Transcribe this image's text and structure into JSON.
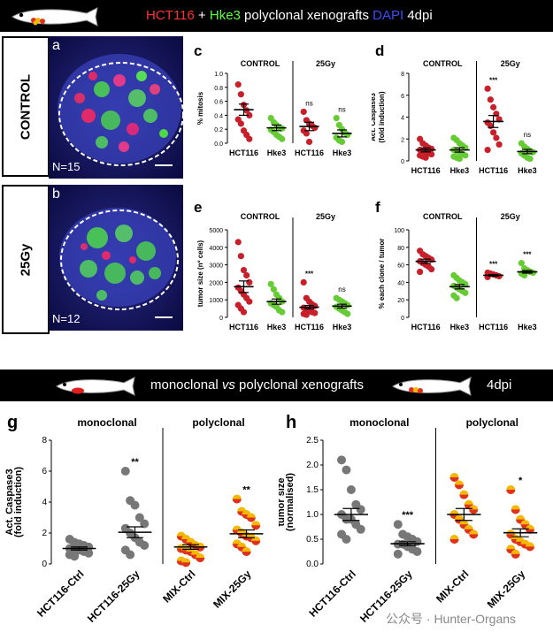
{
  "header": {
    "part1": "HCT116",
    "part2": " + ",
    "part3": "Hke3",
    "part4": " polyclonal xenografts ",
    "part5": "DAPI",
    "part6": " 4dpi"
  },
  "side_labels": {
    "control": "CONTROL",
    "gy": "25Gy"
  },
  "micro": {
    "a": {
      "letter": "a",
      "n": "N=15"
    },
    "b": {
      "letter": "b",
      "n": "N=12"
    }
  },
  "header2": {
    "mono": "monoclonal ",
    "vs": "vs",
    "poly": " polyclonal xenografts",
    "dpi": "4dpi"
  },
  "watermark": "公众号 · Hunter-Organs",
  "colors": {
    "hct": "#c8202a",
    "hke": "#66cc33",
    "mono": "#777777",
    "mix_a": "#f5b800",
    "mix_b": "#e03020"
  },
  "chart_data": [
    {
      "panel": "c",
      "type": "scatter",
      "groups": [
        "CONTROL",
        "25Gy"
      ],
      "categories": [
        "HCT116",
        "Hke3",
        "HCT116",
        "Hke3"
      ],
      "ylabel": "% mitosis",
      "ylim": [
        0,
        1.0
      ],
      "yticks": [
        "0.0",
        "0.2",
        "0.4",
        "0.6",
        "0.8",
        "1.0"
      ],
      "annotations": [
        "",
        "",
        "ns",
        "ns"
      ],
      "means": [
        0.48,
        0.22,
        0.24,
        0.14
      ],
      "sem": [
        0.08,
        0.04,
        0.06,
        0.05
      ],
      "points": [
        [
          0.84,
          0.7,
          0.55,
          0.47,
          0.4,
          0.34,
          0.28,
          0.18,
          0.12,
          0.06
        ],
        [
          0.36,
          0.3,
          0.26,
          0.23,
          0.21,
          0.19,
          0.16,
          0.12,
          0.09,
          0.06
        ],
        [
          0.45,
          0.33,
          0.28,
          0.25,
          0.22,
          0.18,
          0.14,
          0.02
        ],
        [
          0.36,
          0.26,
          0.2,
          0.15,
          0.12,
          0.08,
          0.04,
          0.02
        ]
      ]
    },
    {
      "panel": "d",
      "type": "scatter",
      "groups": [
        "CONTROL",
        "25Gy"
      ],
      "categories": [
        "HCT116",
        "Hke3",
        "HCT116",
        "Hke3"
      ],
      "ylabel": "Act. Caspase3",
      "ylabel2": "(fold induction)",
      "ylim": [
        0,
        8
      ],
      "yticks": [
        "0",
        "2",
        "4",
        "6",
        "8"
      ],
      "annotations": [
        "",
        "",
        "***",
        "ns"
      ],
      "means": [
        1.0,
        1.0,
        3.6,
        0.85
      ],
      "sem": [
        0.18,
        0.2,
        0.55,
        0.2
      ],
      "points": [
        [
          2.0,
          1.6,
          1.4,
          1.2,
          1.1,
          1.0,
          0.9,
          0.8,
          0.7,
          0.6,
          0.5,
          0.4,
          0.3
        ],
        [
          2.1,
          1.9,
          1.6,
          1.4,
          1.2,
          1.0,
          0.9,
          0.8,
          0.6,
          0.5,
          0.4,
          0.3,
          0.2
        ],
        [
          6.6,
          5.6,
          4.9,
          4.3,
          3.8,
          3.5,
          3.2,
          2.6,
          2.1,
          1.5,
          1.0
        ],
        [
          1.6,
          1.3,
          1.1,
          0.9,
          0.8,
          0.7,
          0.5,
          0.3,
          0.2
        ]
      ]
    },
    {
      "panel": "e",
      "type": "scatter",
      "groups": [
        "CONTROL",
        "25Gy"
      ],
      "categories": [
        "HCT116",
        "Hke3",
        "HCT116",
        "Hke3"
      ],
      "ylabel": "tumor size (nº cells)",
      "ylim": [
        0,
        5000
      ],
      "yticks": [
        "0",
        "1000",
        "2000",
        "3000",
        "4000",
        "5000"
      ],
      "annotations": [
        "",
        "",
        "***",
        "ns"
      ],
      "means": [
        1750,
        900,
        580,
        640
      ],
      "sem": [
        330,
        150,
        100,
        110
      ],
      "points": [
        [
          4300,
          3500,
          2700,
          2400,
          2000,
          1700,
          1500,
          1300,
          1100,
          900,
          700,
          500,
          300
        ],
        [
          1900,
          1600,
          1300,
          1100,
          900,
          800,
          700,
          600,
          400,
          300
        ],
        [
          2000,
          1100,
          900,
          750,
          650,
          550,
          450,
          400,
          300,
          250,
          200,
          150
        ],
        [
          1100,
          1000,
          900,
          800,
          700,
          600,
          500,
          400,
          300,
          200
        ]
      ]
    },
    {
      "panel": "f",
      "type": "scatter",
      "groups": [
        "CONTROL",
        "25Gy"
      ],
      "categories": [
        "HCT116",
        "Hke3",
        "HCT116",
        "Hke3"
      ],
      "ylabel": "% each clone / tumor",
      "ylim": [
        0,
        100
      ],
      "yticks": [
        "0",
        "20",
        "40",
        "60",
        "80",
        "100"
      ],
      "annotations": [
        "",
        "",
        "***",
        "***"
      ],
      "means": [
        64,
        35,
        48,
        52
      ],
      "sem": [
        2.5,
        2.5,
        1.0,
        1.5
      ],
      "points": [
        [
          76,
          72,
          70,
          68,
          66,
          64,
          62,
          60,
          58,
          55,
          52
        ],
        [
          48,
          45,
          42,
          40,
          38,
          36,
          34,
          32,
          30,
          28,
          25,
          22
        ],
        [
          51,
          50,
          49,
          48,
          47,
          46
        ],
        [
          62,
          56,
          54,
          52,
          51,
          50,
          48
        ]
      ]
    },
    {
      "panel": "g",
      "type": "scatter",
      "groups": [
        "monoclonal",
        "polyclonal"
      ],
      "categories": [
        "HCT116-Ctrl",
        "HCT116-25Gy",
        "MIX-Ctrl",
        "MIX-25Gy"
      ],
      "ylabel": "Act. Caspase3",
      "ylabel2": "(fold induction)",
      "ylim": [
        0,
        8
      ],
      "yticks": [
        "0",
        "2",
        "4",
        "6",
        "8"
      ],
      "annotations": [
        "",
        "**",
        "",
        "**"
      ],
      "means": [
        1.0,
        2.05,
        1.1,
        1.95
      ],
      "sem": [
        0.1,
        0.35,
        0.15,
        0.25
      ],
      "points": [
        [
          1.6,
          1.4,
          1.3,
          1.2,
          1.1,
          1.0,
          1.0,
          0.9,
          0.8,
          0.7,
          0.6,
          0.5
        ],
        [
          6.0,
          4.1,
          3.8,
          3.0,
          2.6,
          2.3,
          2.0,
          1.7,
          1.4,
          1.2,
          0.9,
          0.6
        ],
        [
          1.8,
          1.6,
          1.4,
          1.2,
          1.1,
          1.0,
          0.9,
          0.8,
          0.6,
          0.4,
          0.2,
          0.1
        ],
        [
          4.2,
          3.4,
          3.2,
          3.0,
          2.5,
          2.2,
          2.0,
          1.8,
          1.7,
          1.5,
          1.3,
          1.1,
          0.8
        ]
      ]
    },
    {
      "panel": "h",
      "type": "scatter",
      "groups": [
        "monoclonal",
        "polyclonal"
      ],
      "categories": [
        "HCT116-Ctrl",
        "HCT116-25Gy",
        "MIX-Ctrl",
        "MIX-25Gy"
      ],
      "ylabel": "tumor size",
      "ylabel2": "(normalised)",
      "ylim": [
        0,
        2.5
      ],
      "yticks": [
        "0.0",
        "0.5",
        "1.0",
        "1.5",
        "2.0",
        "2.5"
      ],
      "annotations": [
        "",
        "***",
        "",
        "*"
      ],
      "means": [
        1.0,
        0.41,
        1.0,
        0.63
      ],
      "sem": [
        0.12,
        0.04,
        0.12,
        0.08
      ],
      "points": [
        [
          2.1,
          1.9,
          1.5,
          1.2,
          1.1,
          1.0,
          0.9,
          0.9,
          0.8,
          0.7,
          0.6,
          0.5
        ],
        [
          0.8,
          0.6,
          0.55,
          0.5,
          0.45,
          0.4,
          0.4,
          0.35,
          0.3,
          0.25,
          0.2
        ],
        [
          1.75,
          1.6,
          1.4,
          1.2,
          1.1,
          1.0,
          0.9,
          0.8,
          0.7,
          0.6,
          0.5
        ],
        [
          1.5,
          1.1,
          0.9,
          0.8,
          0.7,
          0.6,
          0.5,
          0.45,
          0.4,
          0.35,
          0.3,
          0.2
        ]
      ]
    }
  ]
}
